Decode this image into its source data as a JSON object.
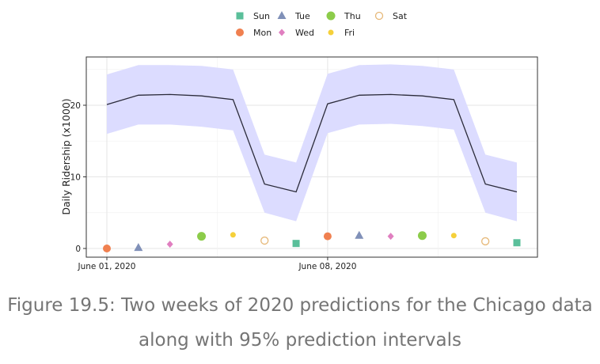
{
  "caption": "Figure 19.5: Two weeks of 2020 predictions for the Chicago data along with 95% prediction intervals",
  "colors": {
    "band": "#dcdcff",
    "line": "#2b2b3a",
    "Sun": "#5abf9a",
    "Mon": "#f08050",
    "Tue": "#8090b8",
    "Wed": "#e07fc0",
    "Thu": "#8ccc4a",
    "Fri": "#f5d03a",
    "Sat": "#e6b878"
  },
  "chart_data": {
    "type": "line",
    "ylabel": "Daily Ridership (x1000)",
    "xlabel": "",
    "xlim": [
      "2020-06-01",
      "2020-06-14"
    ],
    "ylim": [
      -1,
      27
    ],
    "x_ticks": [
      "June 01, 2020",
      "June 08, 2020"
    ],
    "y_ticks": [
      0,
      10,
      20
    ],
    "grid": true,
    "legend_position": "top",
    "legend": [
      "Sun",
      "Mon",
      "Tue",
      "Wed",
      "Thu",
      "Fri",
      "Sat"
    ],
    "dates": [
      "2020-06-01",
      "2020-06-02",
      "2020-06-03",
      "2020-06-04",
      "2020-06-05",
      "2020-06-06",
      "2020-06-07",
      "2020-06-08",
      "2020-06-09",
      "2020-06-10",
      "2020-06-11",
      "2020-06-12",
      "2020-06-13",
      "2020-06-14"
    ],
    "prediction": [
      20.1,
      21.4,
      21.5,
      21.3,
      20.8,
      9.0,
      7.9,
      20.2,
      21.4,
      21.5,
      21.3,
      20.8,
      9.0,
      7.9
    ],
    "lower": [
      16.0,
      17.3,
      17.3,
      17.0,
      16.5,
      5.0,
      3.8,
      16.1,
      17.3,
      17.4,
      17.1,
      16.6,
      5.0,
      3.8
    ],
    "upper": [
      24.3,
      25.6,
      25.6,
      25.5,
      25.0,
      13.1,
      12.0,
      24.4,
      25.6,
      25.7,
      25.5,
      25.0,
      13.1,
      12.0
    ],
    "day_points": [
      {
        "date": "2020-06-01",
        "day": "Mon",
        "value": 0.0
      },
      {
        "date": "2020-06-02",
        "day": "Tue",
        "value": 0.1
      },
      {
        "date": "2020-06-03",
        "day": "Wed",
        "value": 0.6
      },
      {
        "date": "2020-06-04",
        "day": "Thu",
        "value": 1.7
      },
      {
        "date": "2020-06-05",
        "day": "Fri",
        "value": 1.9
      },
      {
        "date": "2020-06-06",
        "day": "Sat",
        "value": 1.1
      },
      {
        "date": "2020-06-07",
        "day": "Sun",
        "value": 0.7
      },
      {
        "date": "2020-06-08",
        "day": "Mon",
        "value": 1.7
      },
      {
        "date": "2020-06-09",
        "day": "Tue",
        "value": 1.8
      },
      {
        "date": "2020-06-10",
        "day": "Wed",
        "value": 1.7
      },
      {
        "date": "2020-06-11",
        "day": "Thu",
        "value": 1.8
      },
      {
        "date": "2020-06-12",
        "day": "Fri",
        "value": 1.8
      },
      {
        "date": "2020-06-13",
        "day": "Sat",
        "value": 1.0
      },
      {
        "date": "2020-06-14",
        "day": "Sun",
        "value": 0.8
      }
    ]
  }
}
